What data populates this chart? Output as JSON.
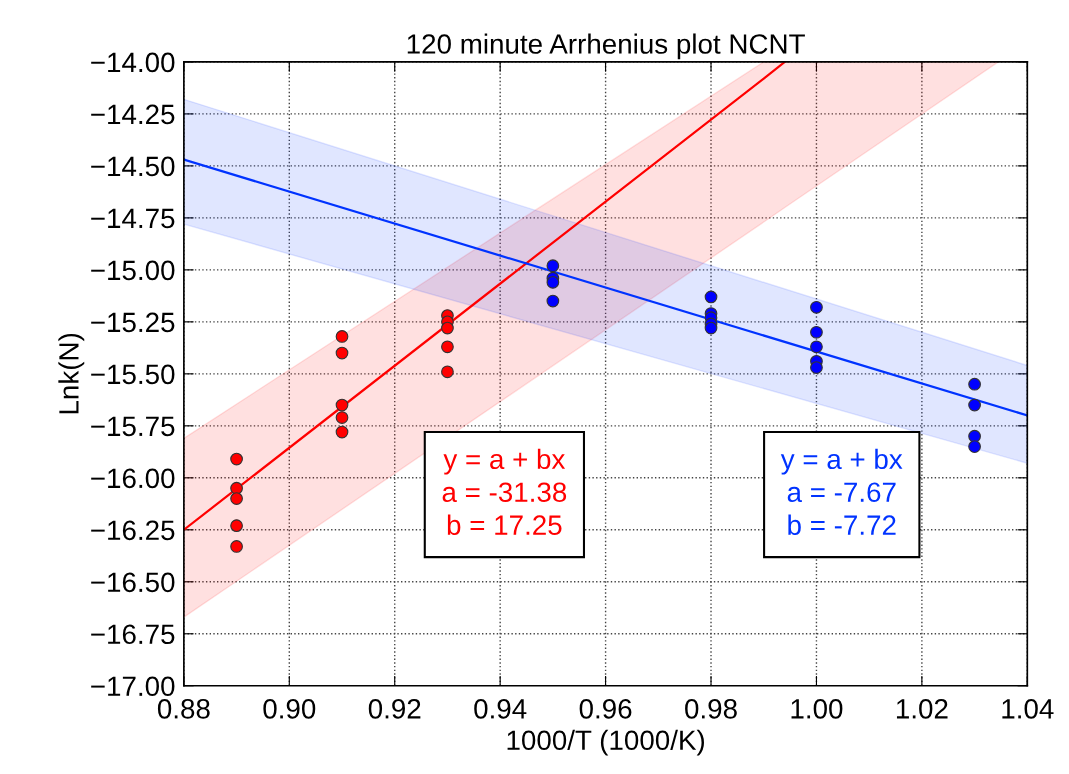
{
  "chart_data": {
    "type": "scatter",
    "title": "120 minute Arrhenius plot NCNT",
    "xlabel": "1000/T (1000/K)",
    "ylabel": "Lnk(N)",
    "xlim": [
      0.88,
      1.04
    ],
    "ylim": [
      -17.0,
      -14.0
    ],
    "xticks": [
      {
        "value": 0.88,
        "label": "0.88"
      },
      {
        "value": 0.9,
        "label": "0.90"
      },
      {
        "value": 0.92,
        "label": "0.92"
      },
      {
        "value": 0.94,
        "label": "0.94"
      },
      {
        "value": 0.96,
        "label": "0.96"
      },
      {
        "value": 0.98,
        "label": "0.98"
      },
      {
        "value": 1.0,
        "label": "1.00"
      },
      {
        "value": 1.02,
        "label": "1.02"
      },
      {
        "value": 1.04,
        "label": "1.04"
      }
    ],
    "yticks": [
      {
        "value": -14.0,
        "label": "−14.00"
      },
      {
        "value": -14.25,
        "label": "−14.25"
      },
      {
        "value": -14.5,
        "label": "−14.50"
      },
      {
        "value": -14.75,
        "label": "−14.75"
      },
      {
        "value": -15.0,
        "label": "−15.00"
      },
      {
        "value": -15.25,
        "label": "−15.25"
      },
      {
        "value": -15.5,
        "label": "−15.50"
      },
      {
        "value": -15.75,
        "label": "−15.75"
      },
      {
        "value": -16.0,
        "label": "−16.00"
      },
      {
        "value": -16.25,
        "label": "−16.25"
      },
      {
        "value": -16.5,
        "label": "−16.50"
      },
      {
        "value": -16.75,
        "label": "−16.75"
      },
      {
        "value": -17.0,
        "label": "−17.00"
      }
    ],
    "grid": true,
    "series": [
      {
        "type": "line",
        "marker": "none",
        "color": "#ff0000",
        "x": [
          0.88,
          0.99,
          0.994,
          1.0345
        ],
        "values": [
          -16.25,
          -14.08,
          -14.0,
          null
        ],
        "lower": [
          -16.67,
          -14.77,
          -14.7,
          -14.0
        ],
        "upper": [
          -15.81,
          -14.0,
          -14.0,
          -14.0
        ]
      },
      {
        "type": "line",
        "marker": "none",
        "color": "#0033ff",
        "x": [
          0.88,
          1.04
        ],
        "values": [
          -14.47,
          -15.7
        ],
        "lower": [
          -14.78,
          -15.93
        ],
        "upper": [
          -14.18,
          -15.46
        ]
      },
      {
        "marker": "circle",
        "color": "#ff0000",
        "x": [
          0.89,
          0.89,
          0.89,
          0.89,
          0.89,
          0.91,
          0.91,
          0.91,
          0.91,
          0.91,
          0.93,
          0.93,
          0.93,
          0.93,
          0.93
        ],
        "values": [
          -15.91,
          -16.05,
          -16.1,
          -16.23,
          -16.33,
          -15.32,
          -15.4,
          -15.65,
          -15.71,
          -15.78,
          -15.22,
          -15.25,
          -15.28,
          -15.37,
          -15.49
        ]
      },
      {
        "marker": "circle",
        "color": "#0000ff",
        "x": [
          0.95,
          0.95,
          0.95,
          0.95,
          0.98,
          0.98,
          0.98,
          0.98,
          0.98,
          1.0,
          1.0,
          1.0,
          1.0,
          1.0,
          1.03,
          1.03,
          1.03,
          1.03
        ],
        "values": [
          -14.98,
          -15.04,
          -15.06,
          -15.15,
          -15.13,
          -15.21,
          -15.23,
          -15.26,
          -15.28,
          -15.18,
          -15.3,
          -15.37,
          -15.44,
          -15.47,
          -15.55,
          -15.65,
          -15.8,
          -15.85
        ]
      }
    ],
    "annotations": [
      "y = a + bx\na = -31.38\nb = 17.25",
      "y = a + bx\na = -7.67\nb = -7.72"
    ]
  }
}
